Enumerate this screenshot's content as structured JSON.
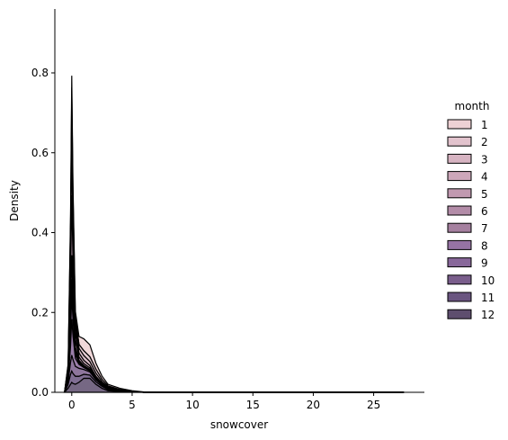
{
  "chart_data": {
    "type": "area",
    "stacked": true,
    "xlabel": "snowcover",
    "ylabel": "Density",
    "xlim": [
      -1.4,
      29.2
    ],
    "ylim": [
      0,
      0.96
    ],
    "x_ticks": [
      0,
      5,
      10,
      15,
      20,
      25
    ],
    "y_ticks": [
      0.0,
      0.2,
      0.4,
      0.6,
      0.8
    ],
    "x_tick_labels": [
      "0",
      "5",
      "10",
      "15",
      "20",
      "25"
    ],
    "y_tick_labels": [
      "0.0",
      "0.2",
      "0.4",
      "0.6",
      "0.8"
    ],
    "grid": false,
    "legend": {
      "title": "month",
      "placement": "right",
      "entries": [
        "1",
        "2",
        "3",
        "4",
        "5",
        "6",
        "7",
        "8",
        "9",
        "10",
        "11",
        "12"
      ]
    },
    "line_color": "#000000",
    "x": [
      -0.6,
      -0.3,
      -0.1,
      0.0,
      0.1,
      0.3,
      0.6,
      1.0,
      1.5,
      2.0,
      2.5,
      3.0,
      4.0,
      5.0,
      6.0,
      8.0,
      10.0,
      15.0,
      20.0,
      27.5
    ],
    "series": [
      {
        "name": "12",
        "color": "#5e4e6e",
        "values": [
          0.0,
          0.01,
          0.02,
          0.025,
          0.022,
          0.02,
          0.025,
          0.035,
          0.035,
          0.02,
          0.01,
          0.004,
          0.002,
          0.001,
          0.0,
          0.0,
          0.0,
          0.0,
          0.0,
          0.0
        ]
      },
      {
        "name": "11",
        "color": "#6a5580",
        "values": [
          0.0,
          0.01,
          0.025,
          0.028,
          0.025,
          0.02,
          0.015,
          0.01,
          0.008,
          0.006,
          0.005,
          0.003,
          0.002,
          0.001,
          0.0,
          0.0,
          0.0,
          0.0,
          0.0,
          0.0
        ]
      },
      {
        "name": "10",
        "color": "#7a5e8c",
        "values": [
          0.0,
          0.008,
          0.03,
          0.04,
          0.035,
          0.025,
          0.02,
          0.012,
          0.008,
          0.005,
          0.003,
          0.002,
          0.001,
          0.0,
          0.0,
          0.0,
          0.0,
          0.0,
          0.0,
          0.0
        ]
      },
      {
        "name": "9",
        "color": "#88679a",
        "values": [
          0.0,
          0.006,
          0.04,
          0.09,
          0.06,
          0.02,
          0.01,
          0.005,
          0.003,
          0.002,
          0.001,
          0.0,
          0.0,
          0.0,
          0.0,
          0.0,
          0.0,
          0.0,
          0.0,
          0.0
        ]
      },
      {
        "name": "8",
        "color": "#9673a4",
        "values": [
          0.0,
          0.006,
          0.03,
          0.06,
          0.04,
          0.01,
          0.004,
          0.002,
          0.001,
          0.0,
          0.0,
          0.0,
          0.0,
          0.0,
          0.0,
          0.0,
          0.0,
          0.0,
          0.0,
          0.0
        ]
      },
      {
        "name": "7",
        "color": "#a5809f",
        "values": [
          0.0,
          0.004,
          0.02,
          0.04,
          0.025,
          0.008,
          0.003,
          0.002,
          0.001,
          0.0,
          0.0,
          0.0,
          0.0,
          0.0,
          0.0,
          0.0,
          0.0,
          0.0,
          0.0,
          0.0
        ]
      },
      {
        "name": "6",
        "color": "#b38ca8",
        "values": [
          0.0,
          0.004,
          0.03,
          0.06,
          0.035,
          0.01,
          0.003,
          0.001,
          0.001,
          0.0,
          0.0,
          0.0,
          0.0,
          0.0,
          0.0,
          0.0,
          0.0,
          0.0,
          0.0,
          0.0
        ]
      },
      {
        "name": "5",
        "color": "#c199b0",
        "values": [
          0.0,
          0.005,
          0.08,
          0.15,
          0.09,
          0.02,
          0.008,
          0.005,
          0.004,
          0.003,
          0.002,
          0.001,
          0.0,
          0.0,
          0.0,
          0.0,
          0.0,
          0.0,
          0.0,
          0.0
        ]
      },
      {
        "name": "4",
        "color": "#cda7ba",
        "values": [
          0.0,
          0.005,
          0.06,
          0.12,
          0.07,
          0.02,
          0.01,
          0.008,
          0.006,
          0.004,
          0.002,
          0.001,
          0.0,
          0.0,
          0.0,
          0.0,
          0.0,
          0.0,
          0.0,
          0.0
        ]
      },
      {
        "name": "3",
        "color": "#d7b4c2",
        "values": [
          0.0,
          0.005,
          0.05,
          0.09,
          0.06,
          0.02,
          0.012,
          0.012,
          0.01,
          0.008,
          0.004,
          0.002,
          0.001,
          0.0,
          0.0,
          0.0,
          0.0,
          0.0,
          0.0,
          0.0
        ]
      },
      {
        "name": "2",
        "color": "#e2c3cd",
        "values": [
          0.0,
          0.004,
          0.04,
          0.06,
          0.04,
          0.015,
          0.01,
          0.012,
          0.012,
          0.01,
          0.006,
          0.003,
          0.001,
          0.0,
          0.0,
          0.0,
          0.0,
          0.0,
          0.0,
          0.0
        ]
      },
      {
        "name": "1",
        "color": "#eed1d4",
        "values": [
          0.0,
          0.004,
          0.02,
          0.03,
          0.022,
          0.015,
          0.02,
          0.03,
          0.03,
          0.015,
          0.008,
          0.004,
          0.003,
          0.002,
          0.001,
          0.0,
          0.0,
          0.0,
          0.0,
          0.0
        ]
      }
    ]
  }
}
